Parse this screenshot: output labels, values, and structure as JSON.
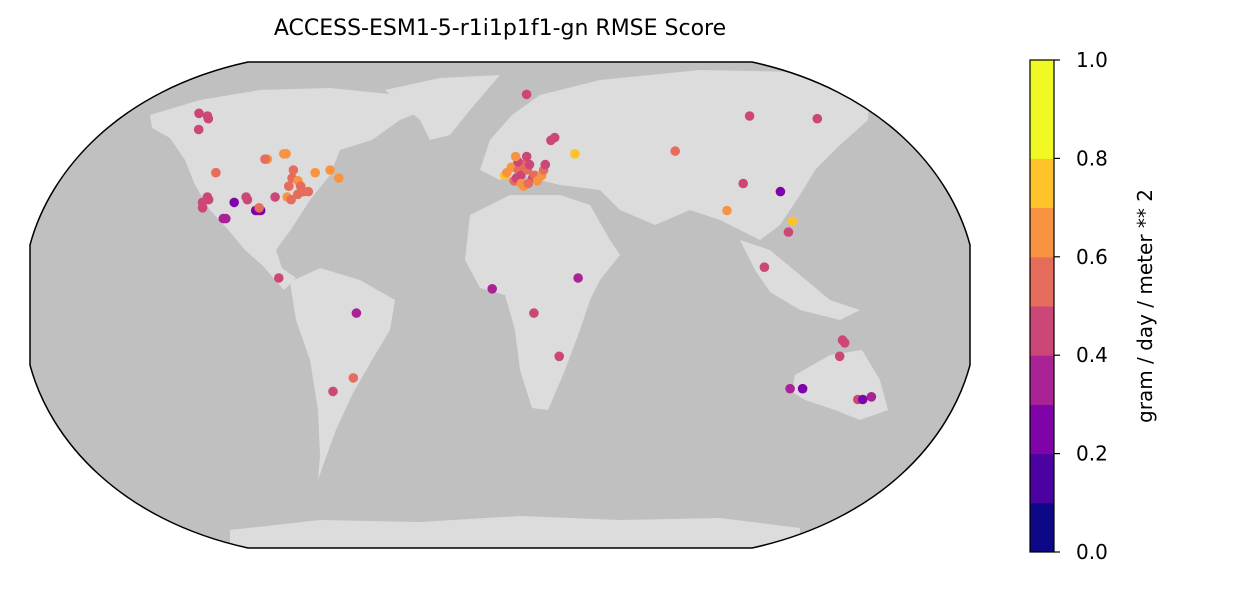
{
  "chart_data": {
    "type": "scatter",
    "title": "ACCESS-ESM1-5-r1i1p1f1-gn RMSE Score",
    "projection": "Robinson (world map)",
    "colorbar": {
      "label": "gram / day / meter ** 2",
      "ticks": [
        "0.0",
        "0.2",
        "0.4",
        "0.6",
        "0.8",
        "1.0"
      ],
      "range": [
        0.0,
        1.0
      ],
      "levels": 10,
      "colormap": "plasma",
      "colors": [
        "#0d0887",
        "#4c02a1",
        "#7e03a8",
        "#a92395",
        "#cc4778",
        "#e66c5c",
        "#f89441",
        "#fdc328",
        "#f0f921",
        "#f0f921"
      ]
    },
    "map_colors": {
      "ocean": "#c0c0c0",
      "land": "#dcdcdc",
      "border": "#000000"
    },
    "points": [
      {
        "lon": -147,
        "lat": 65,
        "value": 0.45
      },
      {
        "lon": -150,
        "lat": 70,
        "value": 0.42
      },
      {
        "lon": -148,
        "lat": 69,
        "value": 0.43
      },
      {
        "lon": -156,
        "lat": 71,
        "value": 0.41
      },
      {
        "lon": -123,
        "lat": 49,
        "value": 0.55
      },
      {
        "lon": -104,
        "lat": 54,
        "value": 0.62
      },
      {
        "lon": -105,
        "lat": 54,
        "value": 0.58
      },
      {
        "lon": -98,
        "lat": 56,
        "value": 0.62
      },
      {
        "lon": -97,
        "lat": 56,
        "value": 0.6
      },
      {
        "lon": -90,
        "lat": 50,
        "value": 0.55
      },
      {
        "lon": -89,
        "lat": 47,
        "value": 0.5
      },
      {
        "lon": -86,
        "lat": 46,
        "value": 0.6
      },
      {
        "lon": -84,
        "lat": 44,
        "value": 0.58
      },
      {
        "lon": -80,
        "lat": 49,
        "value": 0.62
      },
      {
        "lon": -74,
        "lat": 50,
        "value": 0.65
      },
      {
        "lon": -69,
        "lat": 47,
        "value": 0.6
      },
      {
        "lon": -121,
        "lat": 40,
        "value": 0.4
      },
      {
        "lon": -120,
        "lat": 39,
        "value": 0.42
      },
      {
        "lon": -122,
        "lat": 38,
        "value": 0.44
      },
      {
        "lon": -121,
        "lat": 36,
        "value": 0.42
      },
      {
        "lon": -109,
        "lat": 38,
        "value": 0.2
      },
      {
        "lon": -105,
        "lat": 40,
        "value": 0.45
      },
      {
        "lon": -104,
        "lat": 39,
        "value": 0.48
      },
      {
        "lon": -98,
        "lat": 35,
        "value": 0.3
      },
      {
        "lon": -99,
        "lat": 35,
        "value": 0.25
      },
      {
        "lon": -97,
        "lat": 35,
        "value": 0.28
      },
      {
        "lon": -98,
        "lat": 36,
        "value": 0.55
      },
      {
        "lon": -93,
        "lat": 40,
        "value": 0.42
      },
      {
        "lon": -89,
        "lat": 44,
        "value": 0.55
      },
      {
        "lon": -88,
        "lat": 40,
        "value": 0.6
      },
      {
        "lon": -86,
        "lat": 39,
        "value": 0.52
      },
      {
        "lon": -84,
        "lat": 41,
        "value": 0.56
      },
      {
        "lon": -82,
        "lat": 42,
        "value": 0.58
      },
      {
        "lon": -80,
        "lat": 42,
        "value": 0.55
      },
      {
        "lon": -111,
        "lat": 32,
        "value": 0.3
      },
      {
        "lon": -110,
        "lat": 32,
        "value": 0.32
      },
      {
        "lon": -85,
        "lat": 10,
        "value": 0.45
      },
      {
        "lon": -55,
        "lat": -3,
        "value": 0.35
      },
      {
        "lon": -58,
        "lat": -27,
        "value": 0.5
      },
      {
        "lon": -67,
        "lat": -32,
        "value": 0.4
      },
      {
        "lon": 2,
        "lat": 48,
        "value": 0.7
      },
      {
        "lon": 3,
        "lat": 49,
        "value": 0.65
      },
      {
        "lon": 5,
        "lat": 51,
        "value": 0.6
      },
      {
        "lon": 6,
        "lat": 46,
        "value": 0.55
      },
      {
        "lon": 7,
        "lat": 47,
        "value": 0.45
      },
      {
        "lon": 8,
        "lat": 50,
        "value": 0.5
      },
      {
        "lon": 9,
        "lat": 48,
        "value": 0.4
      },
      {
        "lon": 10,
        "lat": 52,
        "value": 0.55
      },
      {
        "lon": 11,
        "lat": 51,
        "value": 0.5
      },
      {
        "lon": 12,
        "lat": 50,
        "value": 0.52
      },
      {
        "lon": 13,
        "lat": 52,
        "value": 0.48
      },
      {
        "lon": 14,
        "lat": 47,
        "value": 0.45
      },
      {
        "lon": 15,
        "lat": 48,
        "value": 0.58
      },
      {
        "lon": 16,
        "lat": 46,
        "value": 0.62
      },
      {
        "lon": 18,
        "lat": 48,
        "value": 0.6
      },
      {
        "lon": 19,
        "lat": 50,
        "value": 0.55
      },
      {
        "lon": 9,
        "lat": 45,
        "value": 0.6
      },
      {
        "lon": 10,
        "lat": 44,
        "value": 0.62
      },
      {
        "lon": 12,
        "lat": 45,
        "value": 0.55
      },
      {
        "lon": 8,
        "lat": 53,
        "value": 0.45
      },
      {
        "lon": 7,
        "lat": 55,
        "value": 0.62
      },
      {
        "lon": 12,
        "lat": 55,
        "value": 0.4
      },
      {
        "lon": 20,
        "lat": 52,
        "value": 0.45
      },
      {
        "lon": 24,
        "lat": 61,
        "value": 0.4
      },
      {
        "lon": 26,
        "lat": 62,
        "value": 0.42
      },
      {
        "lon": 15,
        "lat": 78,
        "value": 0.45
      },
      {
        "lon": 34,
        "lat": 56,
        "value": 0.7
      },
      {
        "lon": 80,
        "lat": 57,
        "value": 0.55
      },
      {
        "lon": 128,
        "lat": 70,
        "value": 0.42
      },
      {
        "lon": 161,
        "lat": 69,
        "value": 0.42
      },
      {
        "lon": 103,
        "lat": 45,
        "value": 0.4
      },
      {
        "lon": 117,
        "lat": 42,
        "value": 0.25
      },
      {
        "lon": 92,
        "lat": 35,
        "value": 0.6
      },
      {
        "lon": 117,
        "lat": 31,
        "value": 0.72
      },
      {
        "lon": 114,
        "lat": 27,
        "value": 0.45
      },
      {
        "lon": 102,
        "lat": 14,
        "value": 0.48
      },
      {
        "lon": 30,
        "lat": 10,
        "value": 0.3
      },
      {
        "lon": -3,
        "lat": 6,
        "value": 0.32
      },
      {
        "lon": 13,
        "lat": -3,
        "value": 0.4
      },
      {
        "lon": 23,
        "lat": -19,
        "value": 0.4
      },
      {
        "lon": 132,
        "lat": -13,
        "value": 0.4
      },
      {
        "lon": 133,
        "lat": -14,
        "value": 0.42
      },
      {
        "lon": 132,
        "lat": -19,
        "value": 0.45
      },
      {
        "lon": 116,
        "lat": -31,
        "value": 0.3
      },
      {
        "lon": 121,
        "lat": -31,
        "value": 0.25
      },
      {
        "lon": 145,
        "lat": -35,
        "value": 0.45
      },
      {
        "lon": 147,
        "lat": -35,
        "value": 0.28
      },
      {
        "lon": 150,
        "lat": -34,
        "value": 0.3
      }
    ]
  }
}
